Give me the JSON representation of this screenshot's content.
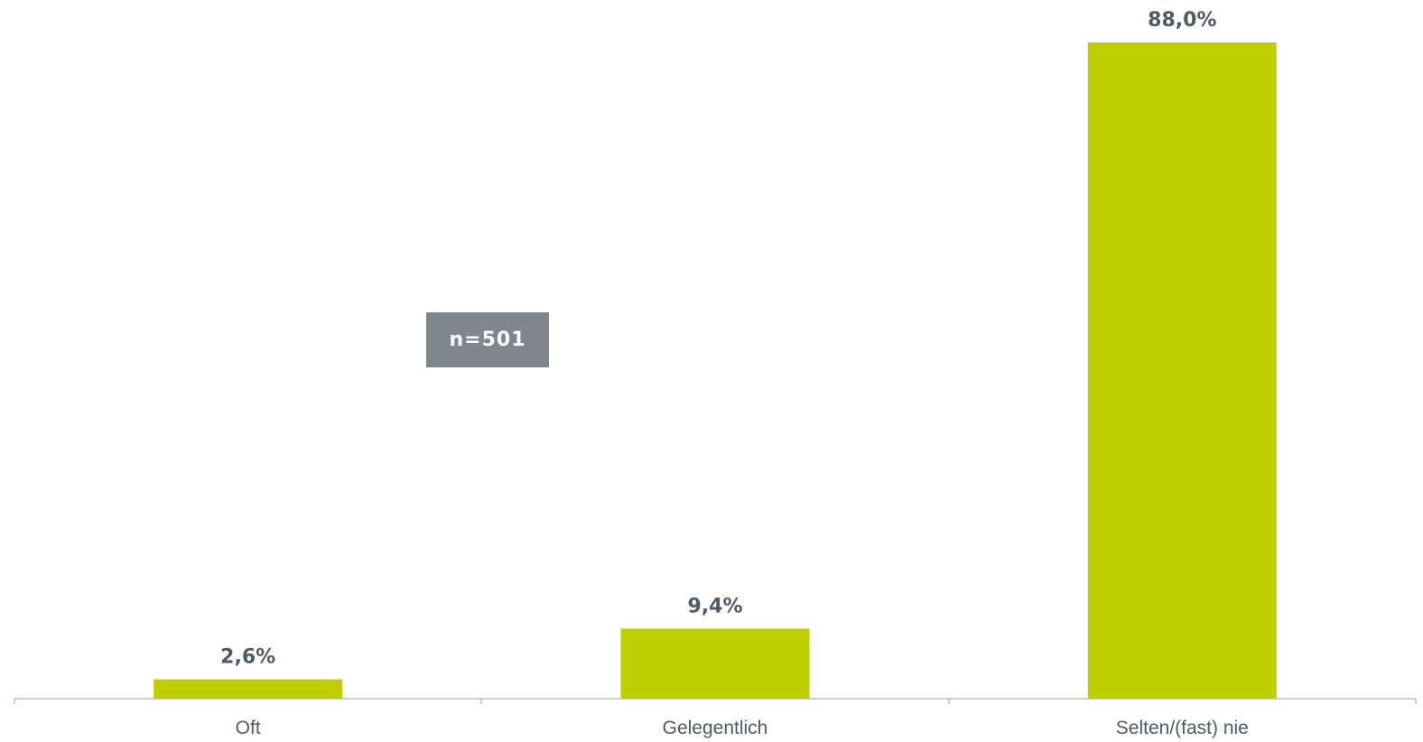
{
  "chart_data": {
    "type": "bar",
    "categories": [
      "Oft",
      "Gelegentlich",
      "Selten/(fast) nie"
    ],
    "values": [
      2.6,
      9.4,
      88.0
    ],
    "data_labels": [
      "2,6%",
      "9,4%",
      "88,0%"
    ],
    "ylim": [
      0,
      88
    ],
    "grid": false,
    "bar_color": "#bfce00",
    "axis_color": "#9aa1a8",
    "text_color": "#4f5a65",
    "annotation": "n=501"
  }
}
